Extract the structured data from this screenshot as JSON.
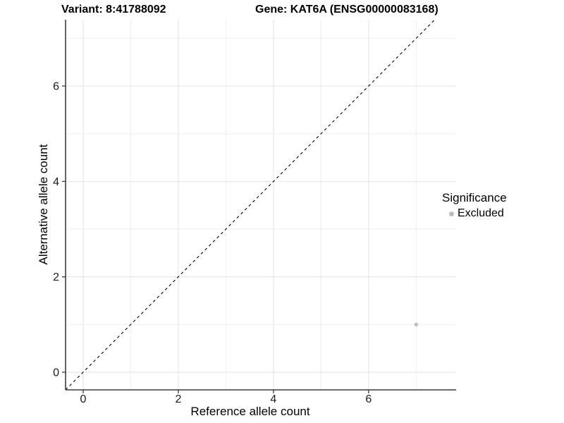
{
  "header": {
    "variant_title": "Variant: 8:41788092",
    "gene_title": "Gene: KAT6A (ENSG00000083168)"
  },
  "chart_data": {
    "type": "scatter",
    "title": "Variant: 8:41788092  Gene: KAT6A (ENSG00000083168)",
    "xlabel": "Reference allele count",
    "ylabel": "Alternative allele count",
    "xlim": [
      -0.37,
      7.84
    ],
    "ylim": [
      -0.37,
      7.39
    ],
    "x_ticks": [
      0,
      2,
      4,
      6
    ],
    "y_ticks": [
      0,
      2,
      4,
      6
    ],
    "grid_x": [
      0,
      1,
      2,
      3,
      4,
      5,
      6,
      7
    ],
    "grid_y": [
      0,
      1,
      2,
      3,
      4,
      5,
      6,
      7
    ],
    "grid": "on",
    "points": [
      {
        "x": 7,
        "y": 1,
        "significance": "Excluded",
        "color": "#bebebe",
        "radius": 2.7
      }
    ],
    "identity_line": {
      "equation": "y = x",
      "style": "dashed",
      "color": "#000000"
    },
    "legend": {
      "position": "right",
      "title": "Significance",
      "entries": [
        {
          "label": "Excluded",
          "color": "#bebebe"
        }
      ]
    }
  },
  "style": {
    "grid_major_color": "#e3e3e3",
    "grid_minor_color": "#eeeeee",
    "axis_color": "#3c3c3c",
    "tick_label_color": "#1a1a1a",
    "text_color": "#000000",
    "background": "#ffffff"
  }
}
